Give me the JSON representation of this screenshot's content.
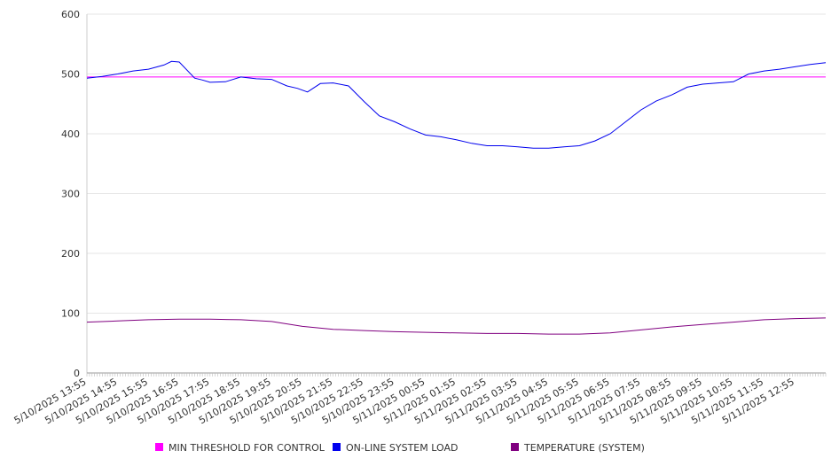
{
  "chart_data": {
    "type": "line",
    "title": "",
    "xlabel": "",
    "ylabel": "",
    "ylim": [
      0,
      600
    ],
    "yticks": [
      0,
      100,
      200,
      300,
      400,
      500,
      600
    ],
    "grid": true,
    "legend_position": "bottom",
    "x_tick_labels": [
      "5/10/2025 13:55",
      "5/10/2025 14:55",
      "5/10/2025 15:55",
      "5/10/2025 16:55",
      "5/10/2025 17:55",
      "5/10/2025 18:55",
      "5/10/2025 19:55",
      "5/10/2025 20:55",
      "5/10/2025 21:55",
      "5/10/2025 22:55",
      "5/10/2025 23:55",
      "5/11/2025 00:55",
      "5/11/2025 01:55",
      "5/11/2025 02:55",
      "5/11/2025 03:55",
      "5/11/2025 04:55",
      "5/11/2025 05:55",
      "5/11/2025 06:55",
      "5/11/2025 07:55",
      "5/11/2025 08:55",
      "5/11/2025 09:55",
      "5/11/2025 10:55",
      "5/11/2025 11:55",
      "5/11/2025 12:55"
    ],
    "series": [
      {
        "name": "MIN THRESHOLD FOR CONTROL",
        "color": "#ff00ff",
        "x": [
          "5/10/2025 13:55",
          "5/11/2025 13:55"
        ],
        "y": [
          495,
          495
        ]
      },
      {
        "name": "ON-LINE SYSTEM LOAD",
        "color": "#0000ee",
        "x": [
          "5/10/2025 13:55",
          "5/10/2025 14:25",
          "5/10/2025 14:55",
          "5/10/2025 15:25",
          "5/10/2025 15:55",
          "5/10/2025 16:25",
          "5/10/2025 16:40",
          "5/10/2025 16:55",
          "5/10/2025 17:25",
          "5/10/2025 17:40",
          "5/10/2025 17:55",
          "5/10/2025 18:25",
          "5/10/2025 18:55",
          "5/10/2025 19:25",
          "5/10/2025 19:55",
          "5/10/2025 20:25",
          "5/10/2025 20:45",
          "5/10/2025 21:05",
          "5/10/2025 21:30",
          "5/10/2025 21:55",
          "5/10/2025 22:25",
          "5/10/2025 22:55",
          "5/10/2025 23:25",
          "5/10/2025 23:55",
          "5/11/2025 00:25",
          "5/11/2025 00:55",
          "5/11/2025 01:25",
          "5/11/2025 01:55",
          "5/11/2025 02:25",
          "5/11/2025 02:55",
          "5/11/2025 03:25",
          "5/11/2025 03:55",
          "5/11/2025 04:25",
          "5/11/2025 04:55",
          "5/11/2025 05:25",
          "5/11/2025 05:55",
          "5/11/2025 06:25",
          "5/11/2025 06:55",
          "5/11/2025 07:25",
          "5/11/2025 07:55",
          "5/11/2025 08:25",
          "5/11/2025 08:55",
          "5/11/2025 09:25",
          "5/11/2025 09:55",
          "5/11/2025 10:25",
          "5/11/2025 10:55",
          "5/11/2025 11:25",
          "5/11/2025 11:55",
          "5/11/2025 12:25",
          "5/11/2025 12:55",
          "5/11/2025 13:25",
          "5/11/2025 13:55"
        ],
        "y": [
          493,
          496,
          500,
          505,
          508,
          515,
          521,
          520,
          493,
          490,
          486,
          487,
          495,
          492,
          491,
          480,
          476,
          470,
          484,
          485,
          480,
          454,
          430,
          420,
          408,
          398,
          395,
          390,
          384,
          380,
          380,
          378,
          376,
          376,
          378,
          380,
          388,
          400,
          420,
          440,
          455,
          465,
          478,
          483,
          485,
          487,
          500,
          505,
          508,
          512,
          516,
          519
        ]
      },
      {
        "name": "TEMPERATURE (SYSTEM)",
        "color": "#800080",
        "x": [
          "5/10/2025 13:55",
          "5/10/2025 14:55",
          "5/10/2025 15:55",
          "5/10/2025 16:55",
          "5/10/2025 17:55",
          "5/10/2025 18:55",
          "5/10/2025 19:55",
          "5/10/2025 20:55",
          "5/10/2025 21:55",
          "5/10/2025 22:55",
          "5/10/2025 23:55",
          "5/11/2025 00:55",
          "5/11/2025 01:55",
          "5/11/2025 02:55",
          "5/11/2025 03:55",
          "5/11/2025 04:55",
          "5/11/2025 05:55",
          "5/11/2025 06:55",
          "5/11/2025 07:55",
          "5/11/2025 08:55",
          "5/11/2025 09:55",
          "5/11/2025 10:55",
          "5/11/2025 11:55",
          "5/11/2025 12:55",
          "5/11/2025 13:55"
        ],
        "y": [
          85,
          87,
          89,
          90,
          90,
          89,
          86,
          78,
          73,
          71,
          69,
          68,
          67,
          66,
          66,
          65,
          65,
          67,
          72,
          77,
          81,
          85,
          89,
          91,
          92
        ]
      }
    ]
  }
}
